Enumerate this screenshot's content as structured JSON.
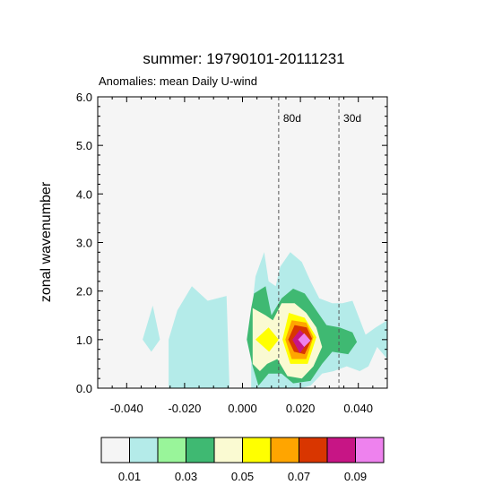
{
  "chart_data": {
    "type": "contour",
    "title": "summer: 19790101-20111231",
    "subtitle": "Anomalies: mean Daily U-wind",
    "xlabel": "",
    "ylabel": "zonal wavenumber",
    "xlim": [
      -0.05,
      0.05
    ],
    "ylim": [
      0.0,
      6.0
    ],
    "xticks": [
      -0.04,
      -0.02,
      0.0,
      0.02,
      0.04
    ],
    "xtick_labels": [
      "-0.040",
      "-0.020",
      "0.000",
      "0.020",
      "0.040"
    ],
    "yticks": [
      0,
      1,
      2,
      3,
      4,
      5,
      6
    ],
    "ytick_labels": [
      "0.0",
      "1.0",
      "2.0",
      "3.0",
      "4.0",
      "5.0",
      "6.0"
    ],
    "period_lines": [
      {
        "label": "80d",
        "frequency": 0.0125
      },
      {
        "label": "30d",
        "frequency": 0.0333
      }
    ],
    "levels": [
      0.01,
      0.02,
      0.03,
      0.04,
      0.05,
      0.06,
      0.07,
      0.08,
      0.09
    ],
    "colorbar_labels": [
      "0.01",
      "0.03",
      "0.05",
      "0.07",
      "0.09"
    ],
    "colors": [
      "#f5f5f5",
      "#b4ebe9",
      "#99f59a",
      "#3fb972",
      "#fafad2",
      "#ffff00",
      "#ffa500",
      "#d93600",
      "#c71585",
      "#ee82ee"
    ],
    "background": "#f5f5f5",
    "regions": [
      {
        "level": 0.01,
        "points": [
          [
            -0.0345,
            1.0
          ],
          [
            -0.031,
            1.7
          ],
          [
            -0.0285,
            1.0
          ],
          [
            -0.0315,
            0.75
          ]
        ]
      },
      {
        "level": 0.01,
        "points": [
          [
            -0.0255,
            0.0
          ],
          [
            -0.0255,
            1.0
          ],
          [
            -0.0225,
            1.6
          ],
          [
            -0.0175,
            2.1
          ],
          [
            -0.012,
            1.8
          ],
          [
            -0.0055,
            1.9
          ],
          [
            -0.0045,
            0.0
          ]
        ]
      },
      {
        "level": 0.01,
        "points": [
          [
            0.003,
            0.0
          ],
          [
            0.003,
            1.5
          ],
          [
            0.0045,
            2.3
          ],
          [
            0.0075,
            2.8
          ],
          [
            0.009,
            2.2
          ],
          [
            0.0115,
            2.1
          ],
          [
            0.013,
            2.5
          ],
          [
            0.0165,
            2.8
          ],
          [
            0.0205,
            2.6
          ],
          [
            0.0235,
            2.2
          ],
          [
            0.0265,
            1.85
          ],
          [
            0.031,
            1.75
          ],
          [
            0.0345,
            1.75
          ],
          [
            0.038,
            1.8
          ],
          [
            0.0425,
            1.1
          ],
          [
            0.046,
            1.25
          ],
          [
            0.05,
            1.4
          ],
          [
            0.05,
            0.6
          ],
          [
            0.0465,
            0.85
          ],
          [
            0.0435,
            0.45
          ],
          [
            0.0405,
            0.35
          ],
          [
            0.036,
            0.45
          ],
          [
            0.0315,
            0.35
          ],
          [
            0.0275,
            0.3
          ],
          [
            0.0235,
            0.05
          ],
          [
            0.02,
            0.0
          ]
        ]
      },
      {
        "level": 0.03,
        "points": [
          [
            0.0015,
            1.0
          ],
          [
            0.003,
            1.65
          ],
          [
            0.004,
            1.95
          ],
          [
            0.008,
            2.1
          ],
          [
            0.01,
            1.5
          ],
          [
            0.0135,
            1.85
          ],
          [
            0.0175,
            2.05
          ],
          [
            0.0215,
            1.95
          ],
          [
            0.0255,
            1.6
          ],
          [
            0.029,
            1.3
          ],
          [
            0.0335,
            1.25
          ],
          [
            0.038,
            1.15
          ],
          [
            0.0395,
            0.95
          ],
          [
            0.0365,
            0.7
          ],
          [
            0.031,
            0.75
          ],
          [
            0.0275,
            0.5
          ],
          [
            0.0235,
            0.15
          ],
          [
            0.0175,
            0.1
          ],
          [
            0.0135,
            0.3
          ],
          [
            0.009,
            0.3
          ],
          [
            0.0055,
            0.05
          ],
          [
            0.0035,
            0.45
          ]
        ]
      },
      {
        "level": 0.04,
        "points": [
          [
            0.0035,
            1.0
          ],
          [
            0.0035,
            1.65
          ],
          [
            0.008,
            1.5
          ],
          [
            0.0105,
            1.4
          ],
          [
            0.0135,
            1.75
          ],
          [
            0.018,
            1.75
          ],
          [
            0.022,
            1.55
          ],
          [
            0.0255,
            1.25
          ],
          [
            0.0275,
            0.85
          ],
          [
            0.0245,
            0.45
          ],
          [
            0.0205,
            0.2
          ],
          [
            0.0155,
            0.25
          ],
          [
            0.012,
            0.6
          ],
          [
            0.0085,
            0.5
          ],
          [
            0.006,
            0.35
          ],
          [
            0.0035,
            0.5
          ]
        ]
      },
      {
        "level": 0.05,
        "points": [
          [
            0.0045,
            1.0
          ],
          [
            0.009,
            1.25
          ],
          [
            0.0125,
            1.0
          ],
          [
            0.0092,
            0.75
          ]
        ]
      },
      {
        "level": 0.05,
        "points": [
          [
            0.0138,
            1.0
          ],
          [
            0.016,
            1.55
          ],
          [
            0.0215,
            1.45
          ],
          [
            0.0255,
            1.05
          ],
          [
            0.0225,
            0.5
          ],
          [
            0.0165,
            0.5
          ]
        ]
      },
      {
        "level": 0.06,
        "points": [
          [
            0.0148,
            1.0
          ],
          [
            0.017,
            1.4
          ],
          [
            0.022,
            1.35
          ],
          [
            0.0245,
            1.05
          ],
          [
            0.022,
            0.6
          ],
          [
            0.017,
            0.6
          ]
        ]
      },
      {
        "level": 0.07,
        "points": [
          [
            0.0158,
            1.0
          ],
          [
            0.018,
            1.3
          ],
          [
            0.0222,
            1.25
          ],
          [
            0.024,
            1.02
          ],
          [
            0.0215,
            0.7
          ],
          [
            0.0178,
            0.75
          ]
        ]
      },
      {
        "level": 0.08,
        "points": [
          [
            0.0172,
            1.0
          ],
          [
            0.0198,
            1.2
          ],
          [
            0.0232,
            1.0
          ],
          [
            0.0198,
            0.72
          ]
        ]
      },
      {
        "level": 0.09,
        "points": [
          [
            0.0192,
            1.0
          ],
          [
            0.0213,
            1.13
          ],
          [
            0.0235,
            0.98
          ],
          [
            0.0213,
            0.85
          ]
        ]
      },
      {
        "level": 0.1,
        "points": [
          [
            0.0208,
            1.0
          ],
          [
            0.0219,
            1.05
          ],
          [
            0.0228,
            0.98
          ],
          [
            0.0218,
            0.93
          ]
        ]
      }
    ]
  }
}
